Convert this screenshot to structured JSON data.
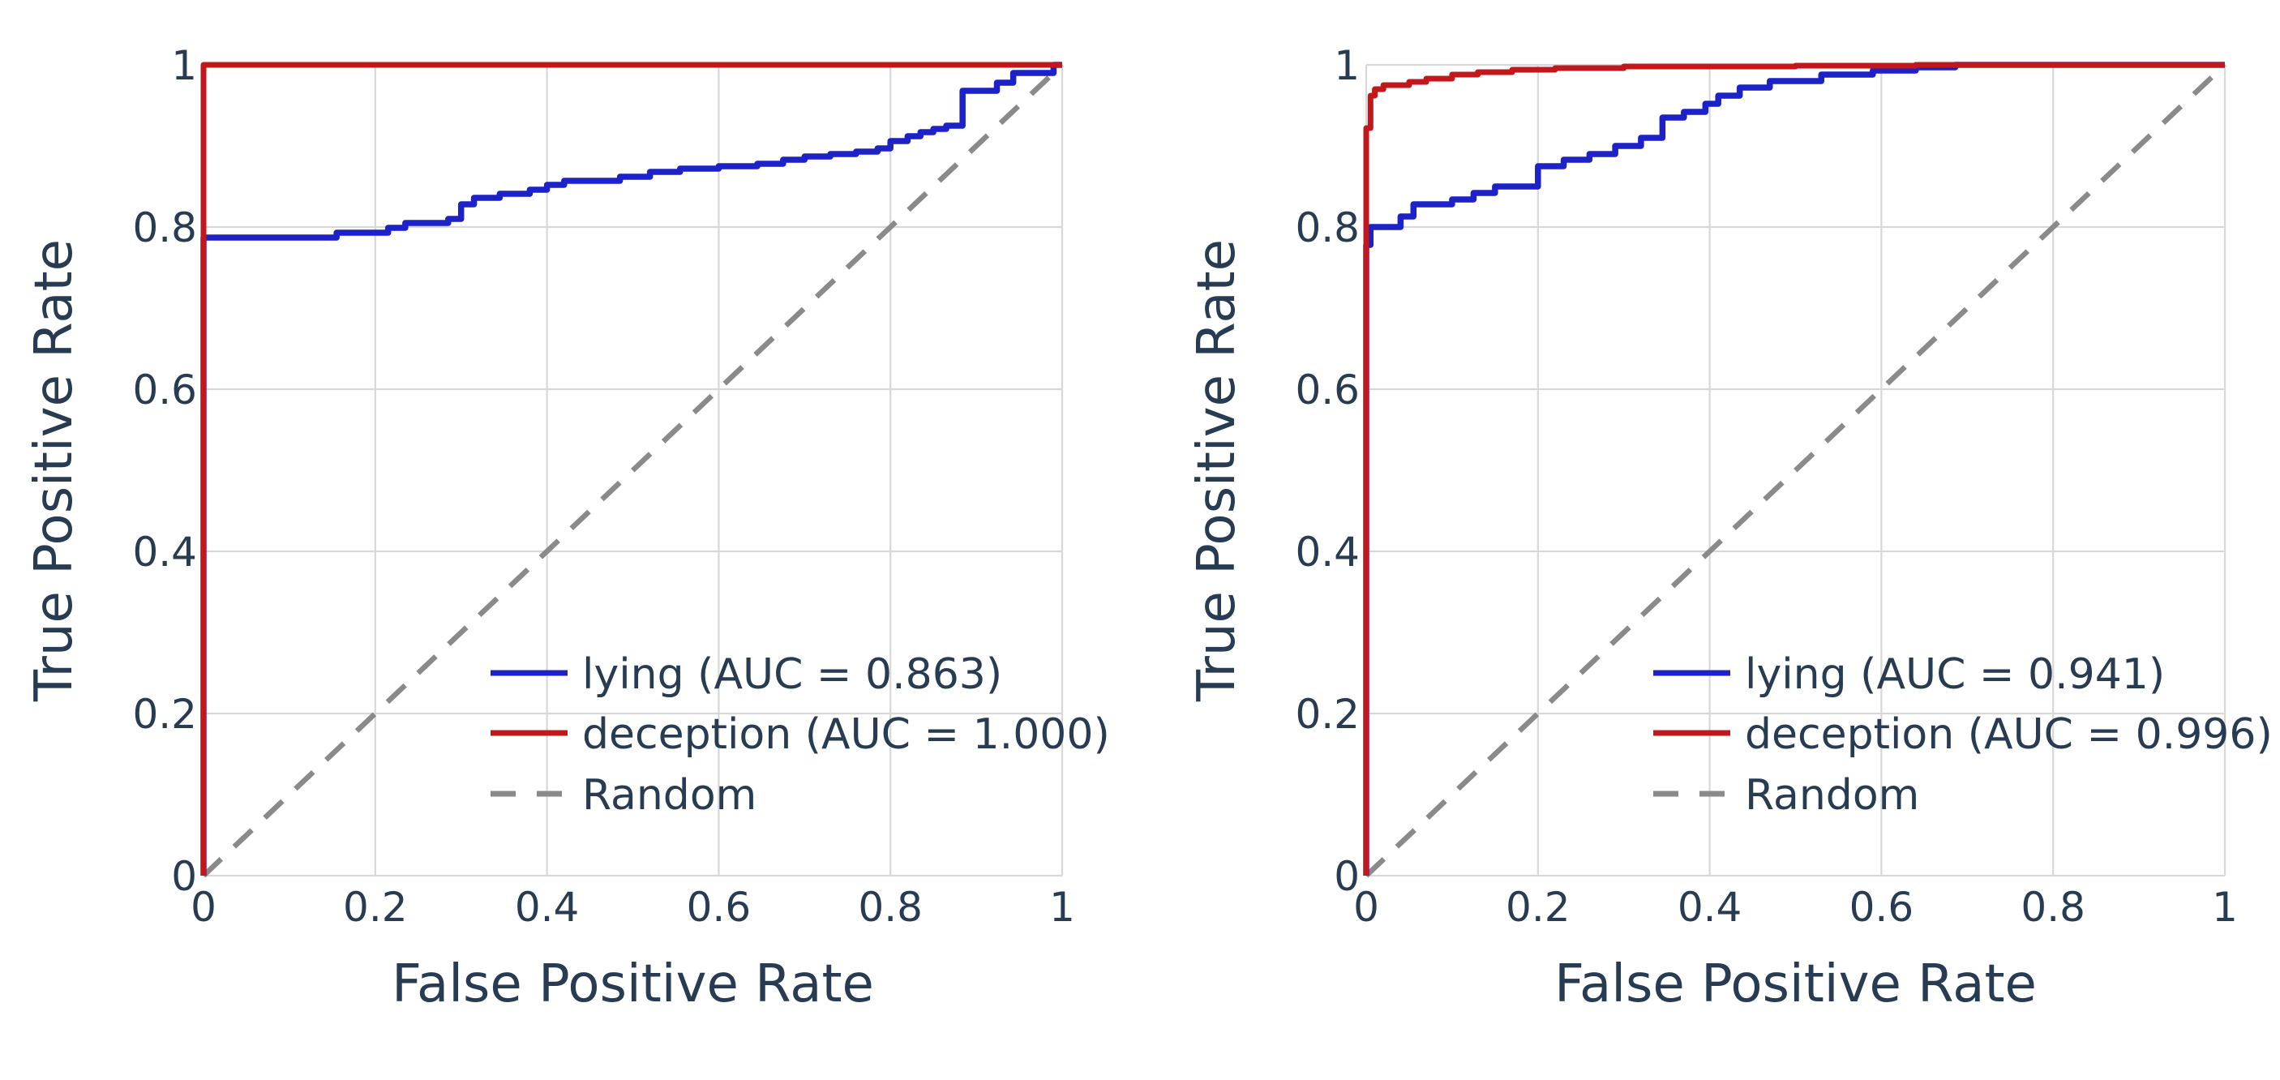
{
  "figure": {
    "background": "#ffffff",
    "text_color": "#273b52",
    "grid_color": "#d8d8d8",
    "series_colors": {
      "lying": "#1c22c8",
      "deception": "#c2181c",
      "random": "#8a8a8a"
    }
  },
  "chart_data": [
    {
      "type": "line",
      "id": "roc-left",
      "xlabel": "False Positive Rate",
      "ylabel": "True Positive Rate",
      "xlim": [
        0,
        1
      ],
      "ylim": [
        0,
        1
      ],
      "grid": true,
      "legend_position": "lower right",
      "xticks": [
        {
          "value": 0,
          "label": "0"
        },
        {
          "value": 0.2,
          "label": "0.2"
        },
        {
          "value": 0.4,
          "label": "0.4"
        },
        {
          "value": 0.6,
          "label": "0.6"
        },
        {
          "value": 0.8,
          "label": "0.8"
        },
        {
          "value": 1,
          "label": "1"
        }
      ],
      "yticks": [
        {
          "value": 0,
          "label": "0"
        },
        {
          "value": 0.2,
          "label": "0.2"
        },
        {
          "value": 0.4,
          "label": "0.4"
        },
        {
          "value": 0.6,
          "label": "0.6"
        },
        {
          "value": 0.8,
          "label": "0.8"
        },
        {
          "value": 1,
          "label": "1"
        }
      ],
      "series": [
        {
          "name": "lying (AUC = 0.863)",
          "auc": 0.863,
          "color": "#1c22c8",
          "style": "solid",
          "kind": "step",
          "points": [
            [
              0,
              0.787
            ],
            [
              0.155,
              0.793
            ],
            [
              0.215,
              0.799
            ],
            [
              0.235,
              0.805
            ],
            [
              0.285,
              0.81
            ],
            [
              0.3,
              0.828
            ],
            [
              0.315,
              0.836
            ],
            [
              0.345,
              0.841
            ],
            [
              0.38,
              0.846
            ],
            [
              0.4,
              0.852
            ],
            [
              0.42,
              0.857
            ],
            [
              0.485,
              0.862
            ],
            [
              0.52,
              0.868
            ],
            [
              0.555,
              0.872
            ],
            [
              0.6,
              0.875
            ],
            [
              0.645,
              0.878
            ],
            [
              0.675,
              0.883
            ],
            [
              0.7,
              0.887
            ],
            [
              0.73,
              0.89
            ],
            [
              0.76,
              0.893
            ],
            [
              0.785,
              0.897
            ],
            [
              0.8,
              0.906
            ],
            [
              0.82,
              0.912
            ],
            [
              0.835,
              0.917
            ],
            [
              0.85,
              0.921
            ],
            [
              0.865,
              0.925
            ],
            [
              0.884,
              0.968
            ],
            [
              0.924,
              0.978
            ],
            [
              0.943,
              0.99
            ],
            [
              0.99,
              1.0
            ],
            [
              1.0,
              1.0
            ]
          ]
        },
        {
          "name": "deception (AUC = 1.000)",
          "auc": 1.0,
          "color": "#c2181c",
          "style": "solid",
          "kind": "step",
          "points": [
            [
              0,
              1.0
            ],
            [
              1.0,
              1.0
            ]
          ]
        },
        {
          "name": "Random",
          "color": "#8a8a8a",
          "style": "dashed",
          "kind": "line",
          "points": [
            [
              0,
              0
            ],
            [
              1,
              1
            ]
          ]
        }
      ]
    },
    {
      "type": "line",
      "id": "roc-right",
      "xlabel": "False Positive Rate",
      "ylabel": "True Positive Rate",
      "xlim": [
        0,
        1
      ],
      "ylim": [
        0,
        1
      ],
      "grid": true,
      "legend_position": "lower right",
      "xticks": [
        {
          "value": 0,
          "label": "0"
        },
        {
          "value": 0.2,
          "label": "0.2"
        },
        {
          "value": 0.4,
          "label": "0.4"
        },
        {
          "value": 0.6,
          "label": "0.6"
        },
        {
          "value": 0.8,
          "label": "0.8"
        },
        {
          "value": 1,
          "label": "1"
        }
      ],
      "yticks": [
        {
          "value": 0,
          "label": "0"
        },
        {
          "value": 0.2,
          "label": "0.2"
        },
        {
          "value": 0.4,
          "label": "0.4"
        },
        {
          "value": 0.6,
          "label": "0.6"
        },
        {
          "value": 0.8,
          "label": "0.8"
        },
        {
          "value": 1,
          "label": "1"
        }
      ],
      "series": [
        {
          "name": "lying (AUC = 0.941)",
          "auc": 0.941,
          "color": "#1c22c8",
          "style": "solid",
          "kind": "step",
          "points": [
            [
              0,
              0.778
            ],
            [
              0.005,
              0.8
            ],
            [
              0.04,
              0.813
            ],
            [
              0.055,
              0.828
            ],
            [
              0.1,
              0.834
            ],
            [
              0.125,
              0.842
            ],
            [
              0.15,
              0.85
            ],
            [
              0.2,
              0.875
            ],
            [
              0.23,
              0.883
            ],
            [
              0.26,
              0.89
            ],
            [
              0.29,
              0.9
            ],
            [
              0.32,
              0.91
            ],
            [
              0.345,
              0.935
            ],
            [
              0.37,
              0.942
            ],
            [
              0.395,
              0.952
            ],
            [
              0.41,
              0.962
            ],
            [
              0.435,
              0.972
            ],
            [
              0.47,
              0.98
            ],
            [
              0.53,
              0.988
            ],
            [
              0.59,
              0.993
            ],
            [
              0.64,
              0.997
            ],
            [
              0.686,
              1.0
            ],
            [
              1.0,
              1.0
            ]
          ]
        },
        {
          "name": "deception (AUC = 0.996)",
          "auc": 0.996,
          "color": "#c2181c",
          "style": "solid",
          "kind": "step",
          "points": [
            [
              0,
              0.922
            ],
            [
              0.005,
              0.962
            ],
            [
              0.01,
              0.97
            ],
            [
              0.02,
              0.975
            ],
            [
              0.05,
              0.979
            ],
            [
              0.07,
              0.983
            ],
            [
              0.1,
              0.988
            ],
            [
              0.13,
              0.991
            ],
            [
              0.17,
              0.994
            ],
            [
              0.22,
              0.996
            ],
            [
              0.3,
              0.998
            ],
            [
              0.5,
              0.999
            ],
            [
              0.64,
              1.0
            ],
            [
              1.0,
              1.0
            ]
          ]
        },
        {
          "name": "Random",
          "color": "#8a8a8a",
          "style": "dashed",
          "kind": "line",
          "points": [
            [
              0,
              0
            ],
            [
              1,
              1
            ]
          ]
        }
      ]
    }
  ]
}
